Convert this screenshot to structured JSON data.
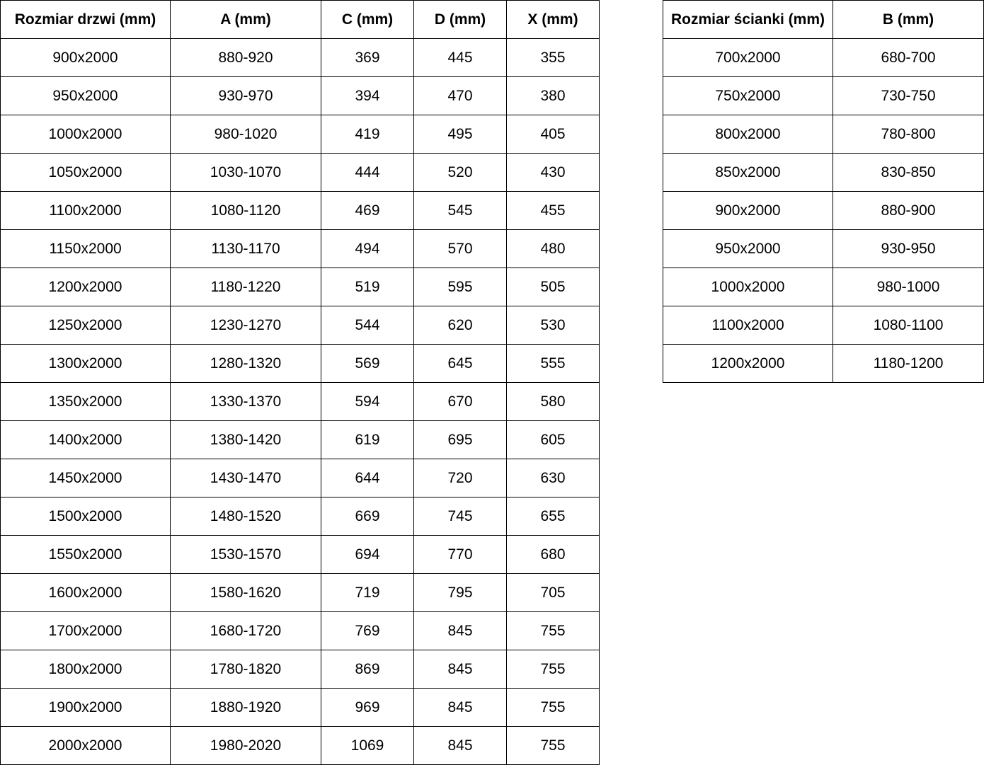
{
  "doors_table": {
    "headers": [
      "Rozmiar drzwi (mm)",
      "A (mm)",
      "C (mm)",
      "D (mm)",
      "X (mm)"
    ],
    "rows": [
      [
        "900x2000",
        "880-920",
        "369",
        "445",
        "355"
      ],
      [
        "950x2000",
        "930-970",
        "394",
        "470",
        "380"
      ],
      [
        "1000x2000",
        "980-1020",
        "419",
        "495",
        "405"
      ],
      [
        "1050x2000",
        "1030-1070",
        "444",
        "520",
        "430"
      ],
      [
        "1100x2000",
        "1080-1120",
        "469",
        "545",
        "455"
      ],
      [
        "1150x2000",
        "1130-1170",
        "494",
        "570",
        "480"
      ],
      [
        "1200x2000",
        "1180-1220",
        "519",
        "595",
        "505"
      ],
      [
        "1250x2000",
        "1230-1270",
        "544",
        "620",
        "530"
      ],
      [
        "1300x2000",
        "1280-1320",
        "569",
        "645",
        "555"
      ],
      [
        "1350x2000",
        "1330-1370",
        "594",
        "670",
        "580"
      ],
      [
        "1400x2000",
        "1380-1420",
        "619",
        "695",
        "605"
      ],
      [
        "1450x2000",
        "1430-1470",
        "644",
        "720",
        "630"
      ],
      [
        "1500x2000",
        "1480-1520",
        "669",
        "745",
        "655"
      ],
      [
        "1550x2000",
        "1530-1570",
        "694",
        "770",
        "680"
      ],
      [
        "1600x2000",
        "1580-1620",
        "719",
        "795",
        "705"
      ],
      [
        "1700x2000",
        "1680-1720",
        "769",
        "845",
        "755"
      ],
      [
        "1800x2000",
        "1780-1820",
        "869",
        "845",
        "755"
      ],
      [
        "1900x2000",
        "1880-1920",
        "969",
        "845",
        "755"
      ],
      [
        "2000x2000",
        "1980-2020",
        "1069",
        "845",
        "755"
      ]
    ]
  },
  "wall_table": {
    "headers": [
      "Rozmiar ścianki (mm)",
      "B (mm)"
    ],
    "rows": [
      [
        "700x2000",
        "680-700"
      ],
      [
        "750x2000",
        "730-750"
      ],
      [
        "800x2000",
        "780-800"
      ],
      [
        "850x2000",
        "830-850"
      ],
      [
        "900x2000",
        "880-900"
      ],
      [
        "950x2000",
        "930-950"
      ],
      [
        "1000x2000",
        "980-1000"
      ],
      [
        "1100x2000",
        "1080-1100"
      ],
      [
        "1200x2000",
        "1180-1200"
      ]
    ]
  }
}
